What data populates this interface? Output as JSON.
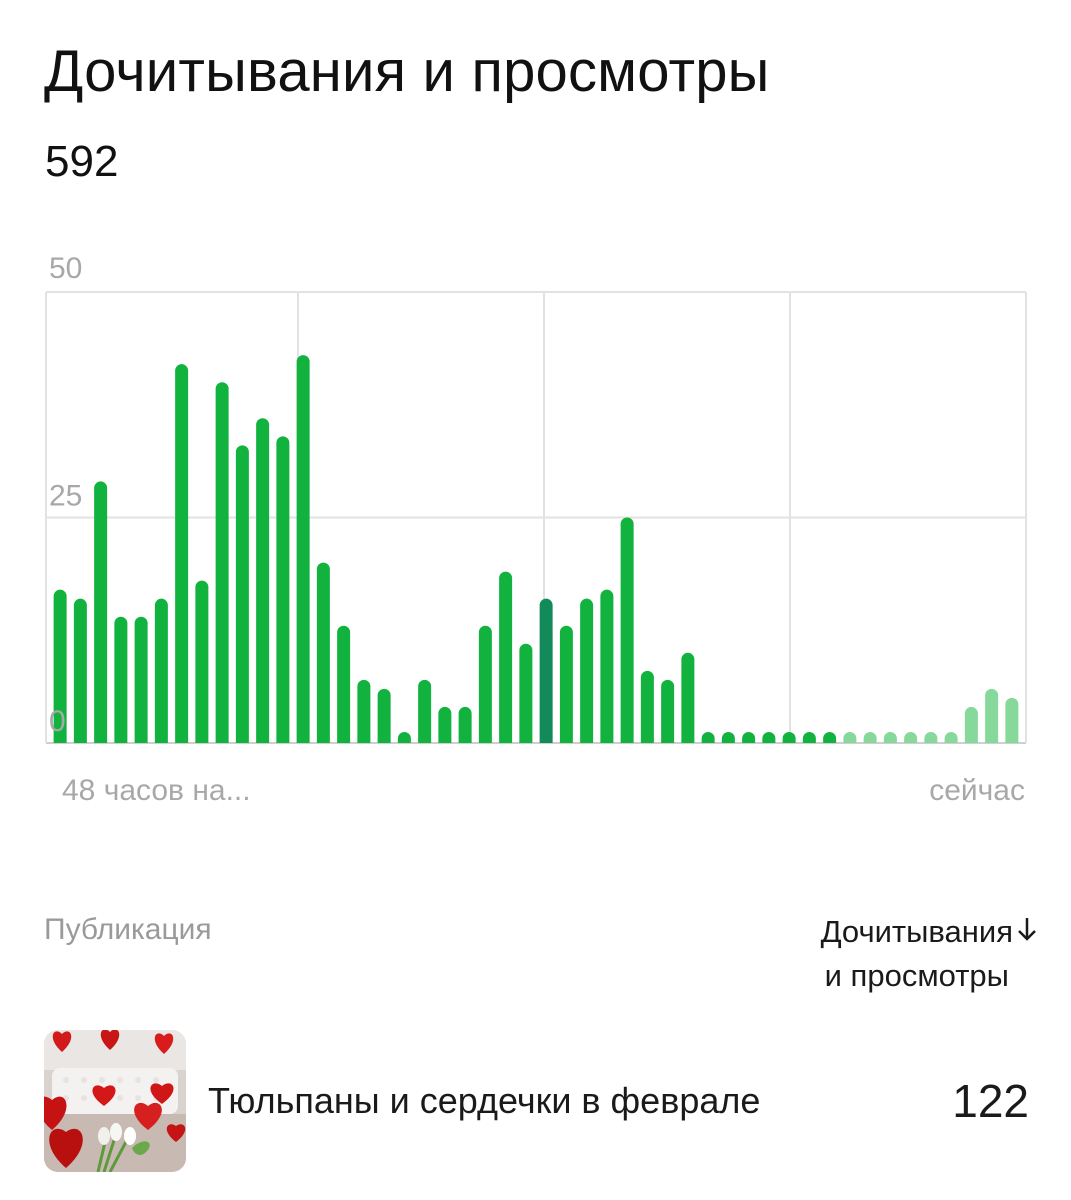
{
  "header": {
    "title": "Дочитывания и просмотры",
    "total": "592"
  },
  "chart_data": {
    "type": "bar",
    "title": "",
    "xlabel": "",
    "ylabel": "",
    "ylim": [
      0,
      50
    ],
    "y_ticks": [
      "50",
      "25",
      "0"
    ],
    "x_labels": {
      "start": "48 часов на...",
      "end": "сейчас"
    },
    "grid": true,
    "values": [
      17,
      16,
      29,
      14,
      14,
      16,
      42,
      18,
      40,
      33,
      36,
      34,
      43,
      20,
      13,
      7,
      6,
      1,
      7,
      4,
      4,
      13,
      19,
      11,
      16,
      13,
      16,
      17,
      25,
      8,
      7,
      10,
      1,
      1,
      1,
      1,
      1,
      1,
      1,
      1,
      1,
      1,
      1,
      1,
      1,
      4,
      6,
      5
    ],
    "highlighted_index": 24,
    "pending_from_index": 39,
    "colors": {
      "bar": "#12b23f",
      "highlighted": "#128a5a",
      "pending": "#86d89b",
      "grid": "#e2e2e2",
      "axis_text": "#a8a8a8"
    }
  },
  "table": {
    "publication_header": "Публикация",
    "metric_header_line1": "Дочитывания",
    "metric_header_line2": "и просмотры",
    "sort_icon": "arrow-down-icon",
    "rows": [
      {
        "title": "Тюльпаны и сердечки в феврале",
        "value": "122",
        "thumbnail": "red heart balloons and white tulips photo"
      }
    ]
  }
}
